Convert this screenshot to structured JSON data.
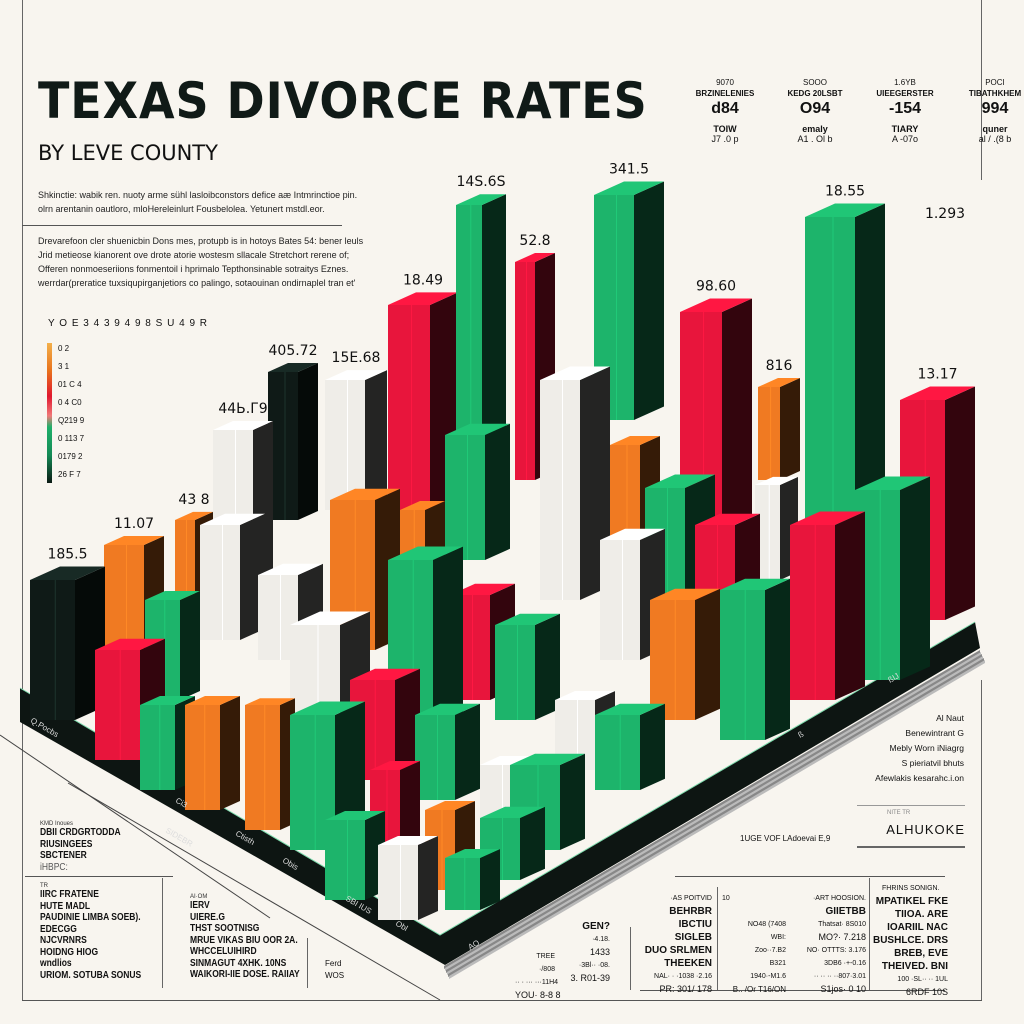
{
  "header": {
    "title": "TEXAS DIVORCE RATES",
    "subtitle": "BY LEVE COUNTY",
    "intro_lines": [
      "Shkinctie: wabik ren. nuoty arme sühl lasloibconstors defice aæ Intmrinctioe pin.",
      "olrn arentanin oautloro, mloHereleinlurt Fousbelolea. Yetunert mstdl.eor."
    ],
    "body_lines": [
      "Drevarefoon cler shuenicbin Dons mes, protupb is in hotoys Bates 54: bener leuls",
      "Jrid metieose kianorent ove drote atorie wostesm sllacale Stretchort rerene of;",
      "Offeren nonmoeseriions fonmentoil i hprimalo Tepthonsinable sotraitys Eznes.",
      "werrdar(preratice tuxsiqupirganjetiors co palingo, sotaouinan ondirnaplel tran et'"
    ]
  },
  "stats": [
    {
      "top": "9070",
      "name": "BRZINELENIES",
      "value": "d84",
      "label": "TOIW",
      "sub": "J7 .0 p"
    },
    {
      "top": "SOOO",
      "name": "KEDG 20LSBT",
      "value": "O94",
      "label": "emaly",
      "sub": "A1 . Ol b"
    },
    {
      "top": "1.6YB",
      "name": "UIEEGERSTER",
      "value": "-154",
      "label": "TIARY",
      "sub": "A -07o"
    },
    {
      "top": "POCI",
      "name": "TIBATHKHEM",
      "value": "994",
      "label": "quner",
      "sub": "al / .(8 b"
    }
  ],
  "legend": {
    "header": "Y O E 3   4   3   9   4   9   8   S   U   4   9   R",
    "items": [
      "0 2",
      "3 1",
      "01 C 4",
      "0 4 C0",
      "Q219 9",
      "0 113 7",
      "0179 2",
      "26 F 7"
    ],
    "colors": [
      "#f3b04a",
      "#e8711c",
      "#e0182f",
      "#f07878",
      "#1eb06a",
      "#138a55",
      "#0e3b2a",
      "#0b1a14"
    ]
  },
  "colors": {
    "green": "#1db46b",
    "red": "#e8153c",
    "orange": "#f07a22",
    "white": "#efede8",
    "black": "#0f1a17",
    "floor": "#0d1512",
    "background": "#f8f5ef"
  },
  "chart_data": {
    "type": "bar",
    "subtype": "3d-isometric",
    "title": "TEXAS DIVORCE RATES",
    "subtitle": "BY LEVE COUNTY",
    "grid": false,
    "legend_position": "left",
    "bars": [
      {
        "label": "14S.6S",
        "color": "green"
      },
      {
        "label": "52.8",
        "color": "red"
      },
      {
        "label": "341.5",
        "color": "green"
      },
      {
        "label": "18.55",
        "color": "green"
      },
      {
        "label": "13.17",
        "color": "red"
      },
      {
        "label": "18.49",
        "color": "red"
      },
      {
        "label": "98.60",
        "color": "red"
      },
      {
        "label": "816",
        "color": "orange"
      },
      {
        "label": "405.72",
        "color": "black"
      },
      {
        "label": "15E.68",
        "color": "white"
      },
      {
        "label": "44Ь.Г9",
        "color": "white"
      },
      {
        "label": "43 8",
        "color": "orange"
      },
      {
        "label": "11.07",
        "color": "orange"
      },
      {
        "label": "185.5",
        "color": "black"
      },
      {
        "label": "",
        "color": "white"
      },
      {
        "label": "",
        "color": "green"
      },
      {
        "label": "",
        "color": "orange"
      },
      {
        "label": "",
        "color": "green"
      },
      {
        "label": "",
        "color": "red"
      },
      {
        "label": "",
        "color": "green"
      },
      {
        "label": "",
        "color": "white"
      },
      {
        "label": "",
        "color": "red"
      },
      {
        "label": "",
        "color": "orange"
      },
      {
        "label": "",
        "color": "green"
      },
      {
        "label": "",
        "color": "white"
      },
      {
        "label": "",
        "color": "green"
      },
      {
        "label": "",
        "color": "white"
      },
      {
        "label": "",
        "color": "green"
      },
      {
        "label": "",
        "color": "red"
      },
      {
        "label": "",
        "color": "green"
      },
      {
        "label": "",
        "color": "orange"
      },
      {
        "label": "",
        "color": "orange"
      },
      {
        "label": "",
        "color": "white"
      },
      {
        "label": "",
        "color": "white"
      },
      {
        "label": "",
        "color": "white"
      },
      {
        "label": "",
        "color": "green"
      },
      {
        "label": "",
        "color": "red"
      },
      {
        "label": "",
        "color": "green"
      },
      {
        "label": "",
        "color": "orange"
      },
      {
        "label": "",
        "color": "orange"
      },
      {
        "label": "",
        "color": "green"
      },
      {
        "label": "",
        "color": "red"
      },
      {
        "label": "",
        "color": "red"
      },
      {
        "label": "",
        "color": "green"
      },
      {
        "label": "",
        "color": "white"
      },
      {
        "label": "",
        "color": "orange"
      },
      {
        "label": "",
        "color": "green"
      },
      {
        "label": "",
        "color": "green"
      },
      {
        "label": "",
        "color": "green"
      },
      {
        "label": "",
        "color": "green"
      },
      {
        "label": "",
        "color": "white"
      }
    ],
    "floating_labels": [
      "1.293"
    ],
    "floor_labels": [
      "Q.Pocbs",
      "Ci3",
      "Ctisth",
      "Obis",
      "SBI IUS",
      "Obl",
      "SIDEBR",
      "AO",
      "ß",
      "ßIJ"
    ]
  },
  "annotation": {
    "lines": [
      "Al Naut",
      "Benewintrant G",
      "Mebly Worn iNiagrg",
      "S pieriatvil bhuts",
      "Afewlakis kesarahc.i.on"
    ],
    "note": "1UGE VOF LAdoevai E,9",
    "box_small": "NITE TR",
    "box_title": "ALHUKOKE"
  },
  "footer": {
    "left_top": {
      "header": "KMD Inoues",
      "lines": [
        "DBII CRDGRTODDA",
        "RIUSINGEES",
        "SBCTENER",
        "iHBPC:"
      ]
    },
    "left_col1": {
      "header": "TR",
      "lines": [
        "IIRC FRATENE",
        "HUTE MADL",
        "PAUDINIE LIMBA SOEB).",
        "EDECGG",
        "NJCVRNRS",
        "HOIDNG HIOG",
        "wndlios",
        "URIOM. SOTUBA SONUS"
      ]
    },
    "left_col2": {
      "header": "AI·OM",
      "lines": [
        "IERV",
        "UIERE.G",
        "THST SOOTNISG",
        "MRUE VIKAS BIU OOR 2A.",
        "WHCCELUIHIRD",
        "SINMAGUT 4XHK. 10NS",
        "WAIKORI-IIE DOSE. RAIIAY"
      ]
    },
    "left_col3": {
      "lines": [
        "Ferd",
        "WOS"
      ]
    },
    "right_cols": [
      {
        "small_top": "TREE",
        "lines": [
          "YOU· 8-8 8"
        ],
        "mid": [
          "·/808"
        ],
        "small": [
          "·· · ··· ···11H4"
        ]
      },
      {
        "bold": [
          "GEN?"
        ],
        "mid": [
          "·4.18.",
          "1433"
        ],
        "small": [
          "·3Bl·· ·08."
        ],
        "lines": [
          "3. R01-39"
        ]
      },
      {
        "small_top": "·AS POITVID",
        "bold": [
          "BEHRBR",
          "IBCTIU",
          "SIGLEB",
          "DUO SRLMEN",
          "THEEKEN"
        ],
        "small": [
          "NAL· · ·1038 ·2.16"
        ],
        "lines": [
          "PR: 301/ 178"
        ]
      },
      {
        "small_top": "10",
        "small": [
          "NO48 (7408",
          "WBI:",
          "Zoo··7.B2",
          "B321",
          "1940·-M1.6"
        ],
        "lines": [
          "B.. /Or  T16/ON"
        ]
      },
      {
        "small_top": "·ART HOOSION.",
        "bold": [
          "GIIETBB"
        ],
        "small": [
          "Thatsat· 8S010",
          "MO?· 7.218",
          "NO· OTTTS: 3.176",
          "3DB6 ·+-0.16",
          "·· ·· ·· ··807·3.01"
        ],
        "lines": [
          "S1jos· 0 10"
        ]
      },
      {
        "small_top": "FHRINS SONIGN.",
        "bold": [
          "MPATIKEL FKE",
          "TIIOA. ARE",
          "IOARIIL NAC",
          "BUSHLCE. DRS",
          "BREB, EVE",
          "THEIVED. BNI"
        ],
        "small": [
          "100 ·SL·· ·· 1UL"
        ],
        "lines": [
          "6RDF 10S"
        ]
      }
    ]
  }
}
